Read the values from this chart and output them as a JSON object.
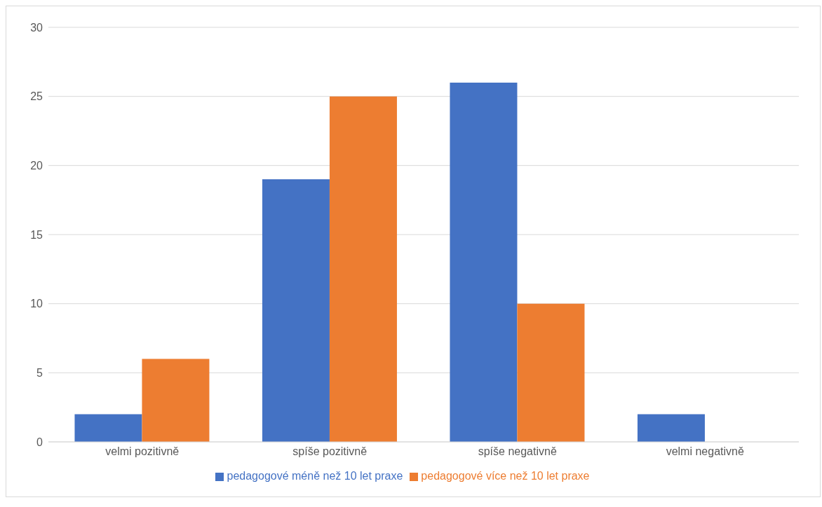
{
  "chart_data": {
    "type": "bar",
    "categories": [
      "velmi pozitivně",
      "spíše pozitivně",
      "spíše negativně",
      "velmi negativně"
    ],
    "series": [
      {
        "name": "pedagogové méně než 10 let praxe",
        "color": "#4472c4",
        "values": [
          2,
          19,
          26,
          2
        ]
      },
      {
        "name": "pedagogové více než 10 let praxe",
        "color": "#ed7d31",
        "values": [
          6,
          25,
          10,
          0
        ]
      }
    ],
    "ylim": [
      0,
      30
    ],
    "yticks": [
      0,
      5,
      10,
      15,
      20,
      25,
      30
    ],
    "grid": "y",
    "legend": "bottom"
  }
}
